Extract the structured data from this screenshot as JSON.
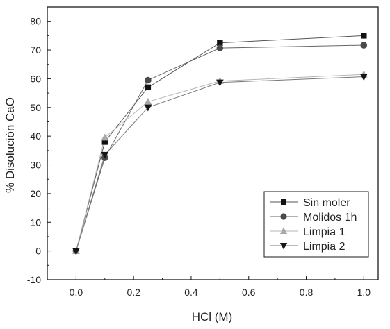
{
  "chart_data": {
    "type": "line",
    "title": "",
    "xlabel": "HCl (M)",
    "ylabel": "% Disolución CaO",
    "xlim": [
      -0.1,
      1.05
    ],
    "ylim": [
      -10,
      85
    ],
    "x_ticks": [
      0.0,
      0.2,
      0.4,
      0.6,
      0.8,
      1.0
    ],
    "x_tick_labels": [
      "0.0",
      "0.2",
      "0.4",
      "0.6",
      "0.8",
      "1.0"
    ],
    "y_ticks": [
      -10,
      0,
      10,
      20,
      30,
      40,
      50,
      60,
      70,
      80
    ],
    "y_tick_labels": [
      "-10",
      "0",
      "10",
      "20",
      "30",
      "40",
      "50",
      "60",
      "70",
      "80"
    ],
    "grid": false,
    "legend_position": "bottom-right",
    "series": [
      {
        "name": "Sin moler",
        "marker": "square",
        "color": "#111111",
        "line_color": "#555555",
        "x": [
          0.0,
          0.1,
          0.25,
          0.5,
          1.0
        ],
        "y": [
          0,
          38,
          57,
          72.5,
          75
        ]
      },
      {
        "name": "Molidos 1h",
        "marker": "circle",
        "color": "#4a4a4a",
        "line_color": "#666666",
        "x": [
          0.0,
          0.1,
          0.25,
          0.5,
          1.0
        ],
        "y": [
          0,
          32.5,
          59.5,
          70.7,
          71.7
        ]
      },
      {
        "name": "Limpia 1",
        "marker": "triangle-up",
        "color": "#a8a8a8",
        "line_color": "#b5b5b5",
        "x": [
          0.0,
          0.1,
          0.25,
          0.5,
          1.0
        ],
        "y": [
          0,
          39.5,
          52,
          59.2,
          61.5
        ]
      },
      {
        "name": "Limpia 2",
        "marker": "triangle-down",
        "color": "#151515",
        "line_color": "#777777",
        "x": [
          0.0,
          0.1,
          0.25,
          0.5,
          1.0
        ],
        "y": [
          0,
          33.5,
          50,
          58.7,
          60.7
        ]
      }
    ]
  }
}
